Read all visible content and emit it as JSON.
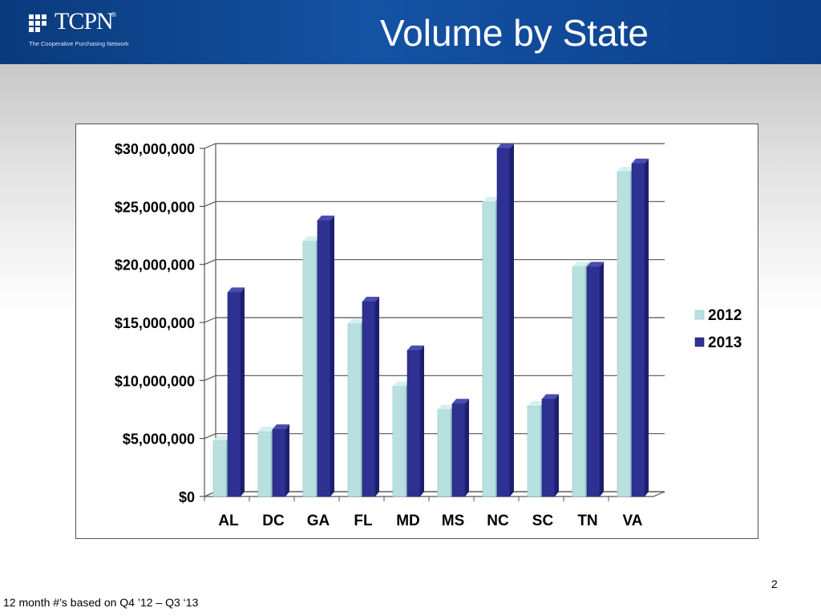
{
  "header": {
    "logo_text": "TCPN",
    "logo_reg": "®",
    "logo_tagline": "The Cooperative Purchasing Network",
    "title": "Volume by State"
  },
  "colors": {
    "series_2012": "#b9e0e1",
    "series_2013": "#2e3192",
    "header_blue": "#1452a3"
  },
  "chart_data": {
    "type": "bar",
    "bar_style": "3d-clustered",
    "categories": [
      "AL",
      "DC",
      "GA",
      "FL",
      "MD",
      "MS",
      "NC",
      "SC",
      "TN",
      "VA"
    ],
    "series": [
      {
        "name": "2012",
        "values": [
          4800000,
          5600000,
          22000000,
          14900000,
          9500000,
          7500000,
          25400000,
          7800000,
          19800000,
          28000000
        ]
      },
      {
        "name": "2013",
        "values": [
          17600000,
          5800000,
          23800000,
          16800000,
          12600000,
          8000000,
          30000000,
          8400000,
          19800000,
          28700000
        ]
      }
    ],
    "ylim": [
      0,
      30000000
    ],
    "y_ticks": [
      0,
      5000000,
      10000000,
      15000000,
      20000000,
      25000000,
      30000000
    ],
    "y_tick_labels": [
      "$0",
      "$5,000,000",
      "$10,000,000",
      "$15,000,000",
      "$20,000,000",
      "$25,000,000",
      "$30,000,000"
    ],
    "grid": true,
    "legend_position": "right"
  },
  "footer": {
    "slide_number": "2",
    "footnote": "12 month #’s based on Q4 ’12 – Q3 ‘13"
  }
}
